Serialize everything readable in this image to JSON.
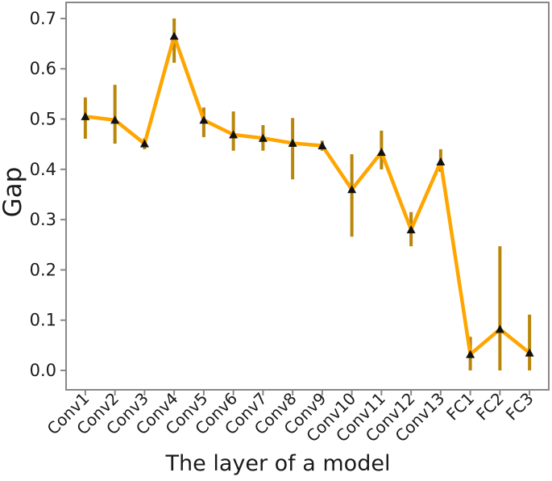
{
  "figure": {
    "background": "#ffffff"
  },
  "chart_data": {
    "type": "line",
    "title": "",
    "xlabel": "The layer of a model",
    "ylabel": "Gap",
    "categories": [
      "Conv1",
      "Conv2",
      "Conv3",
      "Conv4",
      "Conv5",
      "Conv6",
      "Conv7",
      "Conv8",
      "Conv9",
      "Conv10",
      "Conv11",
      "Conv12",
      "Conv13",
      "FC1",
      "FC2",
      "FC3"
    ],
    "series": [
      {
        "name": "Gap",
        "values": [
          0.505,
          0.498,
          0.451,
          0.665,
          0.498,
          0.469,
          0.462,
          0.452,
          0.447,
          0.36,
          0.434,
          0.28,
          0.415,
          0.032,
          0.082,
          0.035
        ],
        "err_low": [
          0.461,
          0.451,
          0.44,
          0.612,
          0.464,
          0.437,
          0.437,
          0.38,
          0.437,
          0.266,
          0.4,
          0.247,
          0.395,
          0.0,
          0.0,
          0.0
        ],
        "err_high": [
          0.543,
          0.568,
          0.462,
          0.7,
          0.523,
          0.515,
          0.488,
          0.502,
          0.457,
          0.43,
          0.477,
          0.315,
          0.44,
          0.067,
          0.247,
          0.111
        ]
      }
    ],
    "marker": "triangle-up",
    "grid": false,
    "legend": "none",
    "x_tick_rotation_deg": 45,
    "xlim": [
      -0.65,
      15.65
    ],
    "ylim": [
      -0.0385,
      0.732
    ],
    "yticks": [
      {
        "value": 0.0,
        "label": "0.0"
      },
      {
        "value": 0.1,
        "label": "0.1"
      },
      {
        "value": 0.2,
        "label": "0.2"
      },
      {
        "value": 0.3,
        "label": "0.3"
      },
      {
        "value": 0.4,
        "label": "0.4"
      },
      {
        "value": 0.5,
        "label": "0.5"
      },
      {
        "value": 0.6,
        "label": "0.6"
      },
      {
        "value": 0.7,
        "label": "0.7"
      }
    ],
    "colors": {
      "line": "#FFA500",
      "error_bar": "#B8860B",
      "marker": "#111111",
      "spine": "#888888",
      "tick_text": "#1a1a1a",
      "background": "#ffffff"
    }
  }
}
